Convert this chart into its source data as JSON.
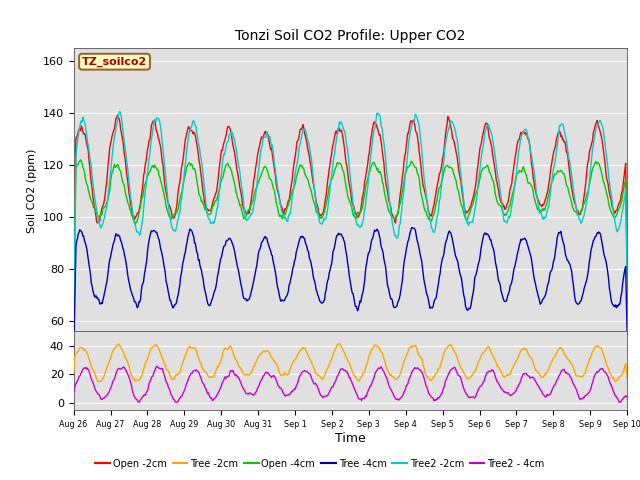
{
  "title": "Tonzi Soil CO2 Profile: Upper CO2",
  "xlabel": "Time",
  "ylabel": "Soil CO2 (ppm)",
  "legend_label": "TZ_soilco2",
  "series_colors": {
    "Open -2cm": "#ff0000",
    "Tree -2cm": "#ffa500",
    "Open -4cm": "#00cc00",
    "Tree -4cm": "#0000bb",
    "Tree2 -2cm": "#00cccc",
    "Tree2 - 4cm": "#cc00cc"
  },
  "plot_bg": "#e0e0e0",
  "grid_color": "#ffffff",
  "n_points": 720,
  "days": 15,
  "tick_labels": [
    "Aug 26",
    "Aug 27",
    "Aug 28",
    "Aug 29",
    "Aug 30",
    "Aug 31",
    "Sep 1",
    "Sep 2",
    "Sep 3",
    "Sep 4",
    "Sep 5",
    "Sep 6",
    "Sep 7",
    "Sep 8",
    "Sep 9",
    "Sep 10"
  ],
  "upper_ylim": [
    55,
    165
  ],
  "upper_yticks": [
    60,
    80,
    100,
    120,
    140,
    160
  ],
  "lower_ylim": [
    -5,
    50
  ],
  "lower_yticks": [
    0,
    20,
    40
  ]
}
